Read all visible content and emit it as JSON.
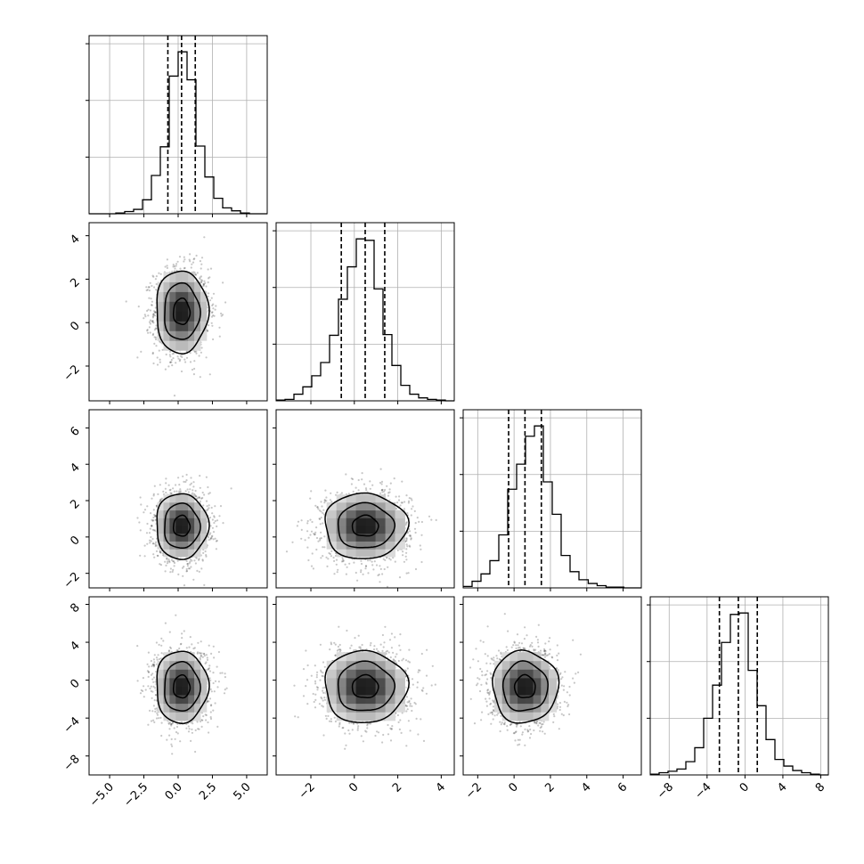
{
  "chart_data": {
    "type": "corner",
    "n_params": 4,
    "colors": {
      "line": "#000000",
      "grid": "#b0b0b0",
      "points": "#000000",
      "background": "#ffffff"
    },
    "params": [
      {
        "name": "",
        "range": [
          -6.5,
          6.5
        ],
        "ticks": [
          -5.0,
          -2.5,
          0.0,
          2.5,
          5.0
        ],
        "tick_labels": [
          "−5.0",
          "−2.5",
          "0.0",
          "2.5",
          "5.0"
        ],
        "mean": 0.25,
        "sigma": 1.0,
        "quantiles": [
          -0.75,
          0.25,
          1.25
        ]
      },
      {
        "name": "",
        "range": [
          -3.6,
          4.6
        ],
        "ticks": [
          -2,
          0,
          2,
          4
        ],
        "tick_labels": [
          "−2",
          "0",
          "2",
          "4"
        ],
        "mean": 0.5,
        "sigma": 1.0,
        "quantiles": [
          -0.6,
          0.5,
          1.4
        ]
      },
      {
        "name": "",
        "range": [
          -2.8,
          7.0
        ],
        "ticks": [
          -2,
          0,
          2,
          4,
          6
        ],
        "tick_labels": [
          "−2",
          "0",
          "2",
          "4",
          "6"
        ],
        "mean": 0.6,
        "sigma": 0.95,
        "quantiles": [
          -0.3,
          0.6,
          1.5
        ]
      },
      {
        "name": "",
        "range": [
          -10.0,
          8.8
        ],
        "ticks": [
          -8,
          -4,
          0,
          4,
          8
        ],
        "tick_labels": [
          "−8",
          "−4",
          "0",
          "4",
          "8"
        ],
        "mean": -0.7,
        "sigma": 2.0,
        "quantiles": [
          -2.7,
          -0.7,
          1.3
        ]
      }
    ],
    "histograms": [
      {
        "param": 0,
        "edges": [
          -6.5,
          -5.85,
          -5.2,
          -4.55,
          -3.9,
          -3.25,
          -2.6,
          -1.95,
          -1.3,
          -0.65,
          0.0,
          0.65,
          1.3,
          1.95,
          2.6,
          3.25,
          3.9,
          4.55,
          5.2,
          5.85,
          6.5
        ],
        "counts": [
          0,
          0,
          0,
          1,
          3,
          6,
          19,
          52,
          91,
          187,
          220,
          182,
          92,
          50,
          21,
          8,
          4,
          1,
          0,
          0
        ]
      },
      {
        "param": 1,
        "edges": [
          -3.6,
          -3.19,
          -2.78,
          -2.37,
          -1.96,
          -1.55,
          -1.14,
          -0.73,
          -0.32,
          0.09,
          0.5,
          0.91,
          1.32,
          1.73,
          2.14,
          2.55,
          2.96,
          3.37,
          3.78,
          4.19,
          4.6
        ],
        "counts": [
          1,
          2,
          9,
          19,
          34,
          52,
          89,
          138,
          182,
          220,
          218,
          152,
          90,
          48,
          21,
          9,
          4,
          2,
          1,
          0
        ]
      },
      {
        "param": 2,
        "edges": [
          -2.8,
          -2.31,
          -1.82,
          -1.33,
          -0.84,
          -0.35,
          0.14,
          0.63,
          1.12,
          1.61,
          2.1,
          2.59,
          3.08,
          3.57,
          4.08,
          4.57,
          5.06,
          5.55,
          6.04,
          6.53,
          7.02
        ],
        "counts": [
          2,
          9,
          19,
          37,
          72,
          134,
          168,
          206,
          220,
          144,
          100,
          44,
          22,
          11,
          6,
          3,
          1,
          1,
          0,
          0
        ]
      },
      {
        "param": 3,
        "edges": [
          -10.0,
          -9.06,
          -8.12,
          -7.18,
          -6.24,
          -5.3,
          -4.36,
          -3.42,
          -2.48,
          -1.54,
          -0.6,
          0.34,
          1.28,
          2.22,
          3.16,
          4.1,
          5.04,
          5.98,
          6.92,
          7.86,
          8.8
        ],
        "counts": [
          1,
          3,
          5,
          8,
          18,
          37,
          77,
          122,
          180,
          218,
          220,
          142,
          94,
          48,
          21,
          12,
          6,
          3,
          1,
          0
        ]
      }
    ],
    "pairs": [
      {
        "x": 0,
        "y": 1,
        "rho": 0.0,
        "contour_sigmas": [
          0.6,
          1.3,
          1.9
        ]
      },
      {
        "x": 0,
        "y": 2,
        "rho": 0.0,
        "contour_sigmas": [
          0.6,
          1.3,
          1.9
        ]
      },
      {
        "x": 1,
        "y": 2,
        "rho": 0.0,
        "contour_sigmas": [
          0.6,
          1.3,
          1.9
        ]
      },
      {
        "x": 0,
        "y": 3,
        "rho": 0.0,
        "contour_sigmas": [
          0.6,
          1.3,
          1.9
        ]
      },
      {
        "x": 1,
        "y": 3,
        "rho": 0.0,
        "contour_sigmas": [
          0.6,
          1.3,
          1.9
        ]
      },
      {
        "x": 2,
        "y": 3,
        "rho": 0.0,
        "contour_sigmas": [
          0.6,
          1.3,
          1.9
        ]
      }
    ],
    "grid": true,
    "legend": false
  }
}
